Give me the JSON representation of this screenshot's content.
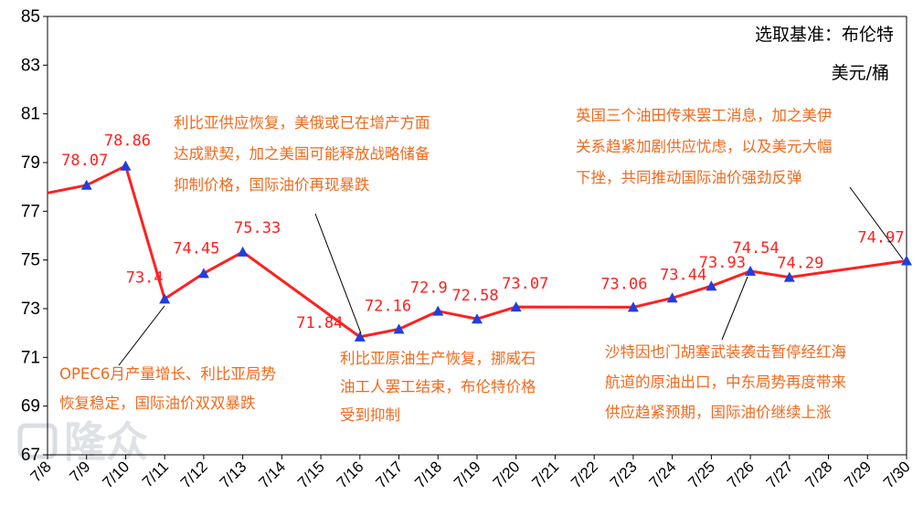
{
  "chart_data": {
    "type": "line",
    "title": "",
    "header_lines": [
      "选取基准：布伦特",
      "美元/桶"
    ],
    "xlabel": "",
    "ylabel": "",
    "ylim": [
      67,
      85
    ],
    "yticks": [
      67,
      69,
      71,
      73,
      75,
      77,
      79,
      81,
      83,
      85
    ],
    "categories": [
      "7/8",
      "7/9",
      "7/10",
      "7/11",
      "7/12",
      "7/13",
      "7/14",
      "7/15",
      "7/16",
      "7/17",
      "7/18",
      "7/19",
      "7/20",
      "7/21",
      "7/22",
      "7/23",
      "7/24",
      "7/25",
      "7/26",
      "7/27",
      "7/28",
      "7/29",
      "7/30"
    ],
    "series": [
      {
        "color": "#ff2020",
        "marker_color": "#1f3fe0",
        "points": [
          {
            "x": "7/8",
            "y": 77.75,
            "label": ""
          },
          {
            "x": "7/9",
            "y": 78.07,
            "label": "78.07"
          },
          {
            "x": "7/10",
            "y": 78.86,
            "label": "78.86"
          },
          {
            "x": "7/11",
            "y": 73.4,
            "label": "73.4"
          },
          {
            "x": "7/12",
            "y": 74.45,
            "label": "74.45"
          },
          {
            "x": "7/13",
            "y": 75.33,
            "label": "75.33"
          },
          {
            "x": "7/16",
            "y": 71.84,
            "label": "71.84"
          },
          {
            "x": "7/17",
            "y": 72.16,
            "label": "72.16"
          },
          {
            "x": "7/18",
            "y": 72.9,
            "label": "72.9"
          },
          {
            "x": "7/19",
            "y": 72.58,
            "label": "72.58"
          },
          {
            "x": "7/20",
            "y": 73.07,
            "label": "73.07"
          },
          {
            "x": "7/23",
            "y": 73.06,
            "label": "73.06"
          },
          {
            "x": "7/24",
            "y": 73.44,
            "label": "73.44"
          },
          {
            "x": "7/25",
            "y": 73.93,
            "label": "73.93"
          },
          {
            "x": "7/26",
            "y": 74.54,
            "label": "74.54"
          },
          {
            "x": "7/27",
            "y": 74.29,
            "label": "74.29"
          },
          {
            "x": "7/30",
            "y": 74.97,
            "label": "74.97"
          }
        ]
      }
    ],
    "grid": false,
    "annotations": [
      {
        "lines": [
          "OPEC6月产量增长、利比亚局势",
          "恢复稳定，国际油价双双暴跌"
        ],
        "target": "7/11"
      },
      {
        "lines": [
          "利比亚供应恢复，美俄或已在增产方面",
          "达成默契，加之美国可能释放战略储备",
          "抑制价格，国际油价再现暴跌"
        ],
        "target": "7/16"
      },
      {
        "lines": [
          "利比亚原油生产恢复，挪威石",
          "油工人罢工结束，布伦特价格",
          "受到抑制"
        ],
        "target": "7/16"
      },
      {
        "lines": [
          "沙特因也门胡塞武装袭击暂停经红海",
          "航道的原油出口，中东局势再度带来",
          "供应趋紧预期，国际油价继续上涨"
        ],
        "target": "7/26"
      },
      {
        "lines": [
          "英国三个油田传来罢工消息，加之美伊",
          "关系趋紧加剧供应忧虑，以及美元大幅",
          "下挫，共同推动国际油价强劲反弹"
        ],
        "target": "7/30"
      }
    ],
    "watermark": "隆众"
  }
}
